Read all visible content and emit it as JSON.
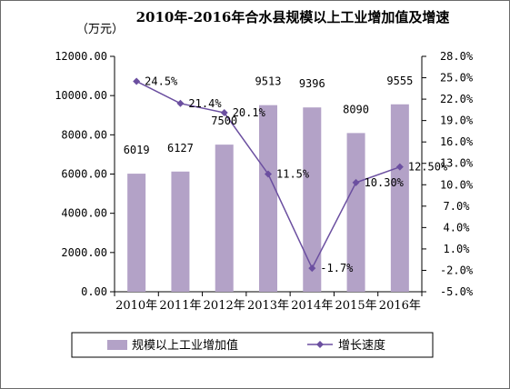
{
  "chart_data": {
    "type": "bar",
    "title": "2010年-2016年合水县规模以上工业增加值及增速",
    "unit_label": "（万元）",
    "categories": [
      "2010年",
      "2011年",
      "2012年",
      "2013年",
      "2014年",
      "2015年",
      "2016年"
    ],
    "left_axis": {
      "ylim": [
        0,
        12000
      ],
      "ticks": [
        "0.00",
        "2000.00",
        "4000.00",
        "6000.00",
        "8000.00",
        "10000.00",
        "12000.00"
      ],
      "tick_values": [
        0,
        2000,
        4000,
        6000,
        8000,
        10000,
        12000
      ]
    },
    "right_axis": {
      "ylim": [
        -5,
        28
      ],
      "ticks": [
        "-5.0%",
        "-2.0%",
        "1.0%",
        "4.0%",
        "7.0%",
        "10.0%",
        "13.0%",
        "16.0%",
        "19.0%",
        "22.0%",
        "25.0%",
        "28.0%"
      ],
      "tick_values": [
        -5,
        -2,
        1,
        4,
        7,
        10,
        13,
        16,
        19,
        22,
        25,
        28
      ]
    },
    "series": [
      {
        "name": "规模以上工业增加值",
        "type": "bar",
        "axis": "left",
        "color": "#b3a2c7",
        "values": [
          6019,
          6127,
          7500,
          9513,
          9396,
          8090,
          9555
        ],
        "labels": [
          "6019",
          "6127",
          "7500",
          "9513",
          "9396",
          "8090",
          "9555"
        ]
      },
      {
        "name": "增长速度",
        "type": "line",
        "axis": "right",
        "color": "#6b4fa0",
        "marker": "diamond",
        "values": [
          24.5,
          21.4,
          20.1,
          11.5,
          -1.7,
          10.3,
          12.5
        ],
        "labels": [
          "24.5%",
          "21.4%",
          "20.1%",
          "11.5%",
          "-1.7%",
          "10.30%",
          "12.50%"
        ]
      }
    ],
    "grid": false,
    "legend": "bottom"
  }
}
